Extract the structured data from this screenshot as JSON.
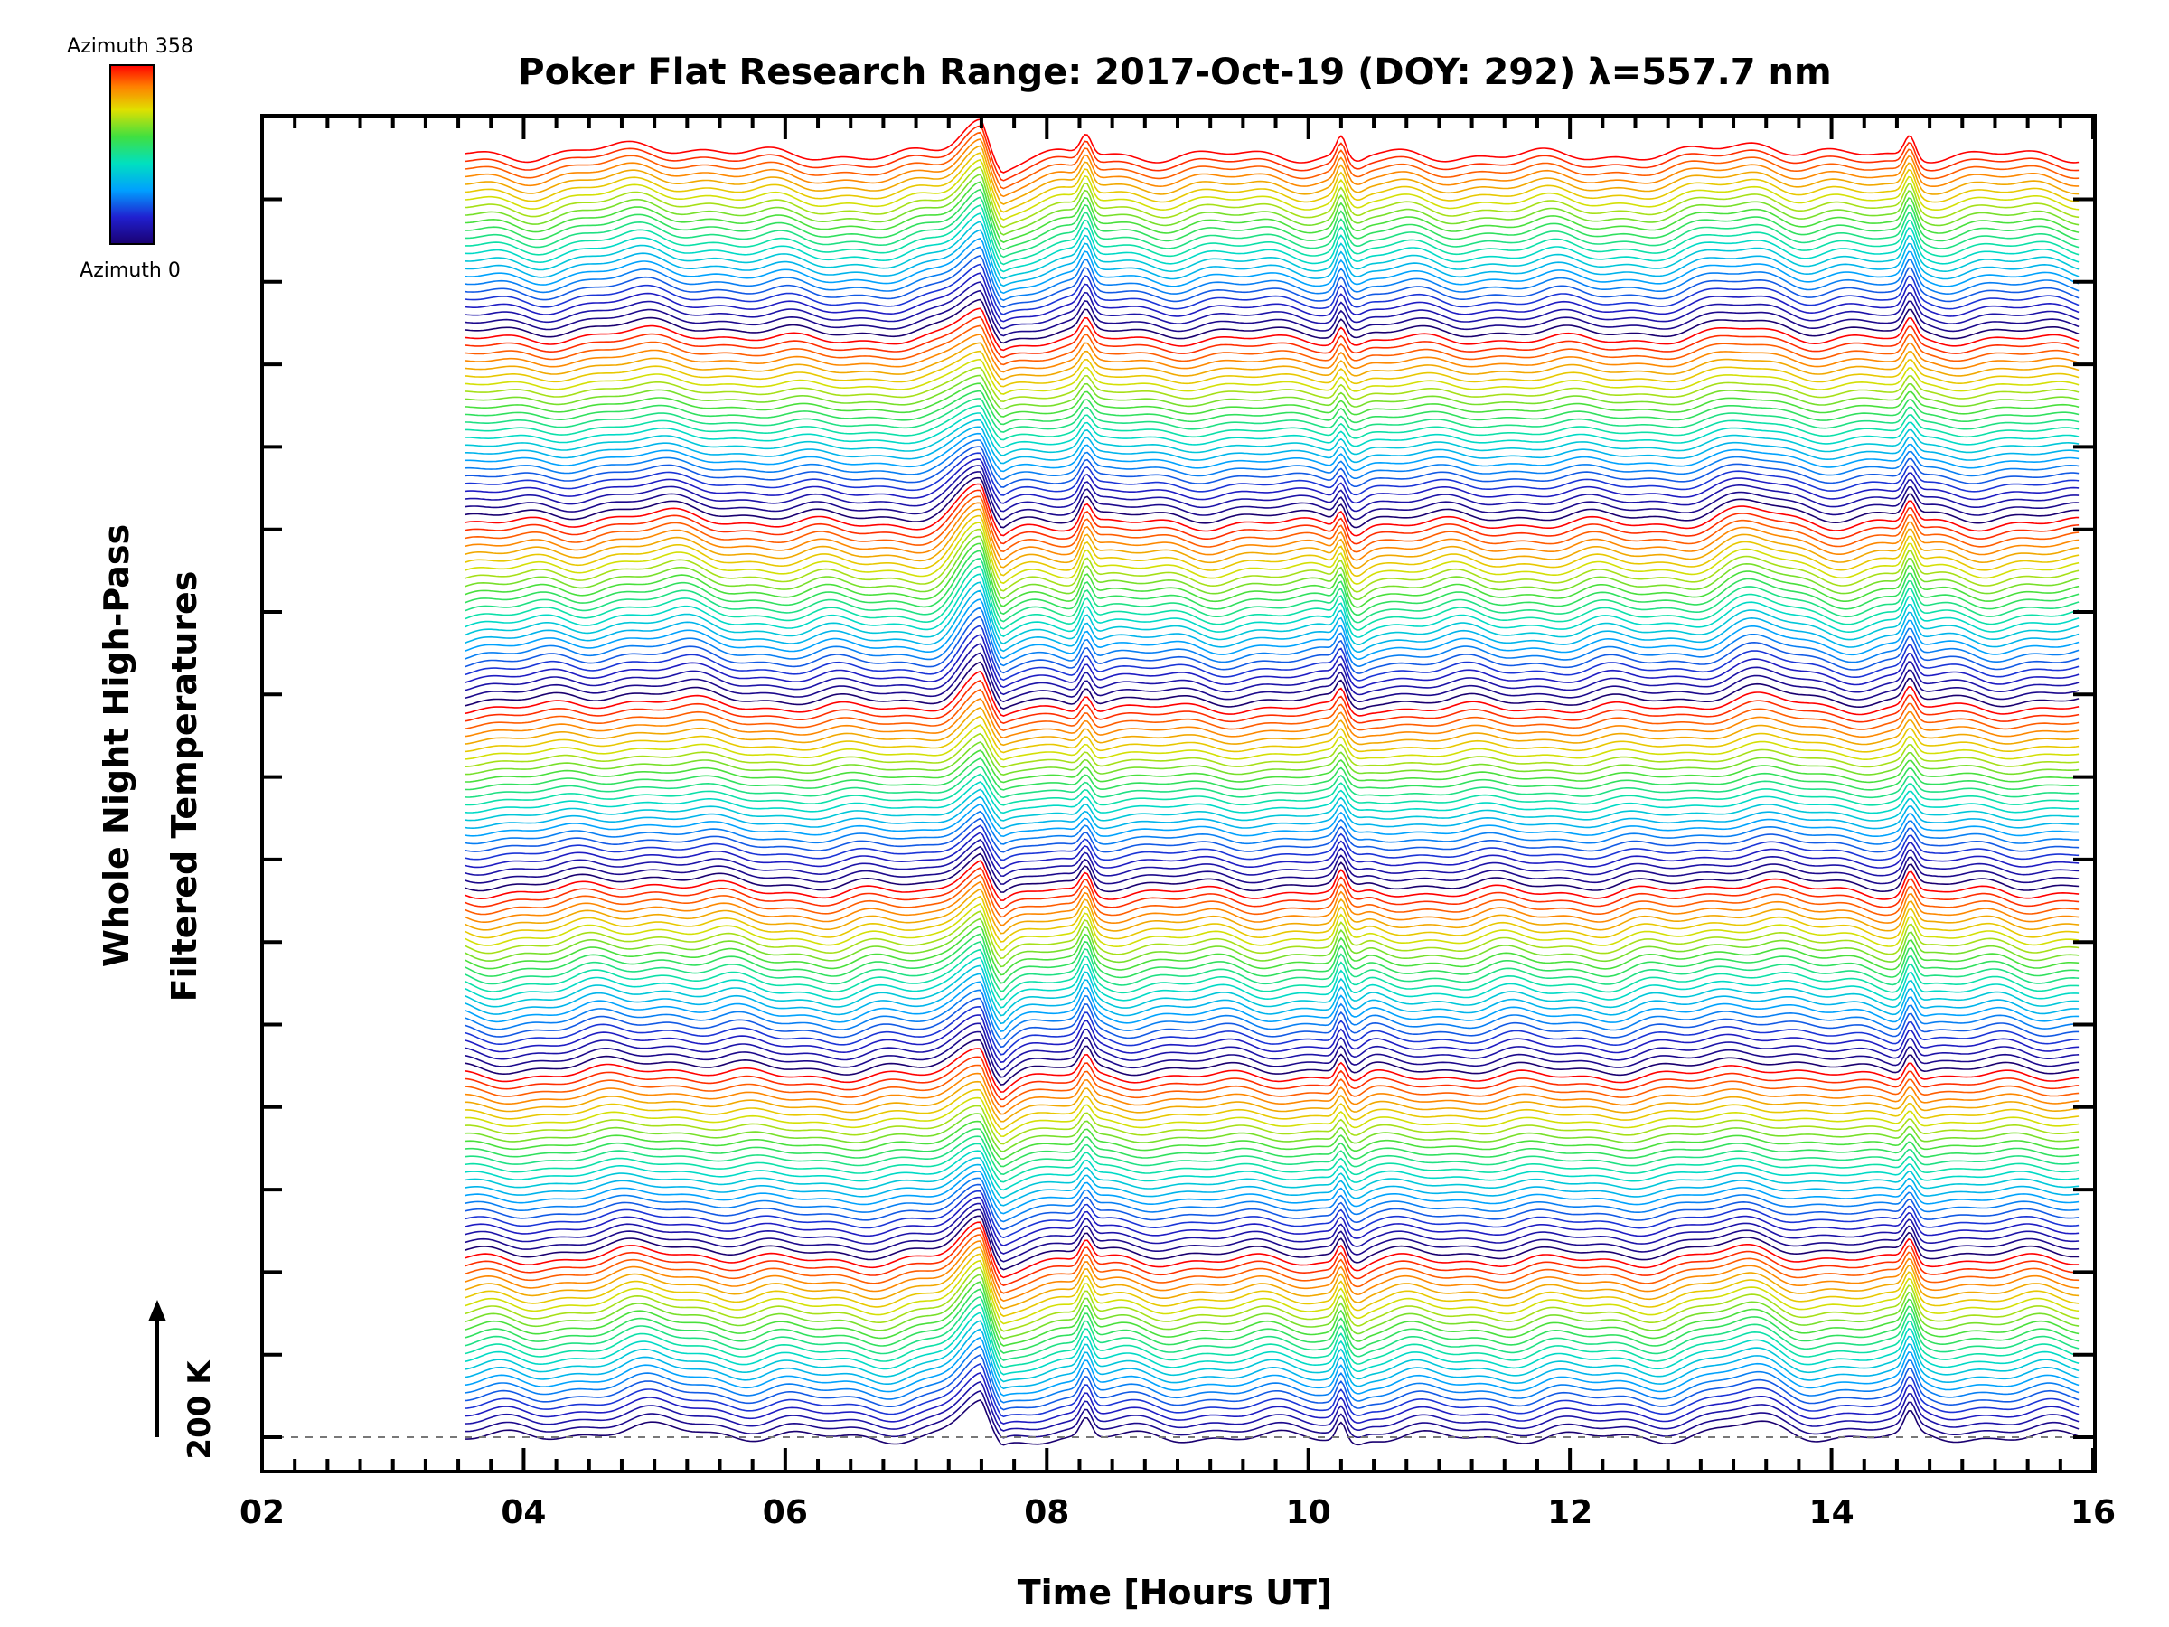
{
  "chart_data": {
    "type": "line",
    "title": "Poker Flat Research Range: 2017-Oct-19 (DOY: 292) λ=557.7 nm",
    "xlabel": "Time [Hours UT]",
    "ylabel": [
      "Whole Night High-Pass",
      "Filtered Temperatures"
    ],
    "xlim": [
      2,
      16
    ],
    "x_ticks": [
      "02",
      "04",
      "06",
      "08",
      "10",
      "12",
      "14",
      "16"
    ],
    "data_start_hour": 3.55,
    "data_end_hour": 15.9,
    "y_scale_label": "200 K",
    "colorbar": {
      "top_label": "Azimuth 358",
      "bottom_label": "Azimuth 0",
      "range": [
        0,
        358
      ],
      "colormap": "rainbow"
    },
    "azimuth_cycles": 7,
    "traces_per_cycle": 24,
    "baseline_style": "dashed",
    "grid": false,
    "legend": "colorbar top-left",
    "features": [
      {
        "hour": 7.5,
        "amplitude": 1.0,
        "width": 0.22,
        "shape": "peak-then-dip"
      },
      {
        "hour": 8.3,
        "amplitude": 0.55,
        "width": 0.06,
        "shape": "spike"
      },
      {
        "hour": 10.25,
        "amplitude": 0.5,
        "width": 0.05,
        "shape": "spike-then-dip"
      },
      {
        "hour": 14.6,
        "amplitude": 0.6,
        "width": 0.06,
        "shape": "spike"
      },
      {
        "hour": 13.4,
        "amplitude": 0.35,
        "width": 0.35,
        "shape": "bump"
      },
      {
        "hour": 5.0,
        "amplitude": 0.25,
        "width": 0.6,
        "shape": "bump"
      }
    ]
  }
}
